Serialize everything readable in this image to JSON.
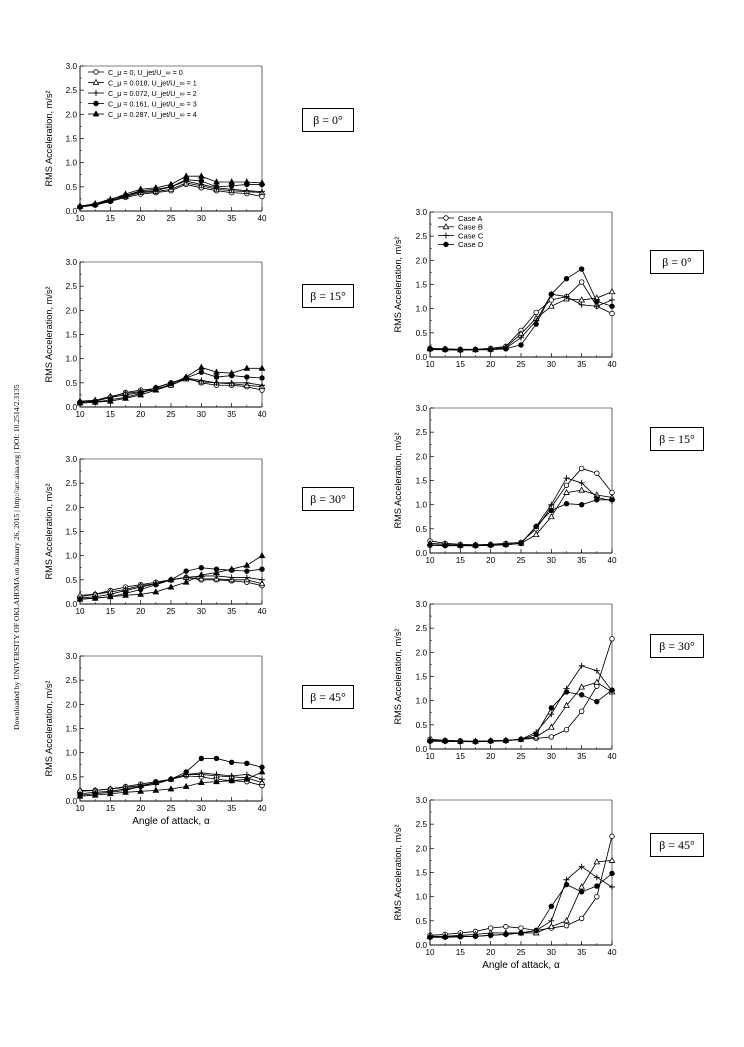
{
  "side_note": "Downloaded by UNIVERSITY OF OKLAHOMA on January 26, 2015 | http://arc.aiaa.org | DOI: 10.2514/2.3135",
  "chart_data": [
    {
      "type": "line",
      "group": "left",
      "panel": 1,
      "beta_label": "β = 0°",
      "ylabel": "RMS Acceleration, m/s²",
      "xlabel": "",
      "xlim": [
        10,
        40
      ],
      "ylim": [
        0,
        3.0
      ],
      "xticks": [
        10,
        15,
        20,
        25,
        30,
        35,
        40
      ],
      "yticks": [
        0.0,
        0.5,
        1.0,
        1.5,
        2.0,
        2.5,
        3.0
      ],
      "x": [
        10,
        12.5,
        15,
        17.5,
        20,
        22.5,
        25,
        27.5,
        30,
        32.5,
        35,
        37.5,
        40
      ],
      "legend": [
        "C_μ = 0, U_jet/U_∞ = 0",
        "C_μ = 0.018, U_jet/U_∞ = 1",
        "C_μ = 0.072, U_jet/U_∞ = 2",
        "C_μ = 0.161, U_jet/U_∞ = 3",
        "C_μ = 0.287, U_jet/U_∞ = 4"
      ],
      "series": [
        {
          "marker": "open-circle",
          "values": [
            0.08,
            0.12,
            0.2,
            0.28,
            0.35,
            0.38,
            0.42,
            0.55,
            0.48,
            0.42,
            0.38,
            0.36,
            0.3
          ]
        },
        {
          "marker": "open-triangle",
          "values": [
            0.1,
            0.14,
            0.22,
            0.3,
            0.38,
            0.4,
            0.45,
            0.58,
            0.52,
            0.45,
            0.42,
            0.4,
            0.38
          ]
        },
        {
          "marker": "plus",
          "values": [
            0.1,
            0.15,
            0.25,
            0.32,
            0.4,
            0.42,
            0.5,
            0.62,
            0.55,
            0.48,
            0.45,
            0.42,
            0.4
          ]
        },
        {
          "marker": "filled-circle",
          "values": [
            0.09,
            0.13,
            0.2,
            0.32,
            0.42,
            0.45,
            0.5,
            0.65,
            0.62,
            0.5,
            0.52,
            0.55,
            0.55
          ]
        },
        {
          "marker": "filled-triangle",
          "values": [
            0.1,
            0.15,
            0.23,
            0.35,
            0.45,
            0.48,
            0.55,
            0.72,
            0.72,
            0.6,
            0.6,
            0.6,
            0.58
          ]
        }
      ]
    },
    {
      "type": "line",
      "group": "left",
      "panel": 2,
      "beta_label": "β = 15°",
      "ylabel": "RMS Acceleration, m/s²",
      "xlabel": "",
      "xlim": [
        10,
        40
      ],
      "ylim": [
        0,
        3.0
      ],
      "xticks": [
        10,
        15,
        20,
        25,
        30,
        35,
        40
      ],
      "yticks": [
        0.0,
        0.5,
        1.0,
        1.5,
        2.0,
        2.5,
        3.0
      ],
      "x": [
        10,
        12.5,
        15,
        17.5,
        20,
        22.5,
        25,
        27.5,
        30,
        32.5,
        35,
        37.5,
        40
      ],
      "series": [
        {
          "marker": "open-circle",
          "values": [
            0.1,
            0.12,
            0.2,
            0.3,
            0.35,
            0.38,
            0.45,
            0.6,
            0.5,
            0.45,
            0.45,
            0.42,
            0.35
          ]
        },
        {
          "marker": "open-triangle",
          "values": [
            0.12,
            0.14,
            0.22,
            0.28,
            0.32,
            0.35,
            0.45,
            0.58,
            0.52,
            0.5,
            0.48,
            0.45,
            0.42
          ]
        },
        {
          "marker": "plus",
          "values": [
            0.1,
            0.12,
            0.2,
            0.25,
            0.3,
            0.4,
            0.5,
            0.6,
            0.55,
            0.5,
            0.5,
            0.5,
            0.45
          ]
        },
        {
          "marker": "filled-circle",
          "values": [
            0.08,
            0.1,
            0.15,
            0.2,
            0.28,
            0.4,
            0.5,
            0.6,
            0.72,
            0.62,
            0.65,
            0.62,
            0.6
          ]
        },
        {
          "marker": "filled-triangle",
          "values": [
            0.08,
            0.1,
            0.12,
            0.18,
            0.25,
            0.35,
            0.48,
            0.62,
            0.82,
            0.72,
            0.7,
            0.8,
            0.8
          ]
        }
      ]
    },
    {
      "type": "line",
      "group": "left",
      "panel": 3,
      "beta_label": "β = 30°",
      "ylabel": "RMS Acceleration, m/s²",
      "xlabel": "",
      "xlim": [
        10,
        40
      ],
      "ylim": [
        0,
        3.0
      ],
      "xticks": [
        10,
        15,
        20,
        25,
        30,
        35,
        40
      ],
      "yticks": [
        0.0,
        0.5,
        1.0,
        1.5,
        2.0,
        2.5,
        3.0
      ],
      "x": [
        10,
        12.5,
        15,
        17.5,
        20,
        22.5,
        25,
        27.5,
        30,
        32.5,
        35,
        37.5,
        40
      ],
      "series": [
        {
          "marker": "open-circle",
          "values": [
            0.15,
            0.2,
            0.28,
            0.35,
            0.4,
            0.45,
            0.5,
            0.55,
            0.5,
            0.5,
            0.48,
            0.45,
            0.38
          ]
        },
        {
          "marker": "open-triangle",
          "values": [
            0.18,
            0.2,
            0.25,
            0.3,
            0.38,
            0.42,
            0.5,
            0.55,
            0.52,
            0.52,
            0.5,
            0.5,
            0.42
          ]
        },
        {
          "marker": "plus",
          "values": [
            0.12,
            0.15,
            0.2,
            0.28,
            0.35,
            0.42,
            0.5,
            0.55,
            0.58,
            0.58,
            0.55,
            0.55,
            0.5
          ]
        },
        {
          "marker": "filled-circle",
          "values": [
            0.1,
            0.12,
            0.15,
            0.22,
            0.3,
            0.4,
            0.5,
            0.68,
            0.75,
            0.72,
            0.7,
            0.68,
            0.72
          ]
        },
        {
          "marker": "filled-triangle",
          "values": [
            0.1,
            0.12,
            0.15,
            0.18,
            0.2,
            0.25,
            0.35,
            0.45,
            0.6,
            0.65,
            0.72,
            0.8,
            1.0
          ]
        }
      ]
    },
    {
      "type": "line",
      "group": "left",
      "panel": 4,
      "beta_label": "β = 45°",
      "ylabel": "RMS Acceleration, m/s²",
      "xlabel": "Angle of attack, α",
      "xlim": [
        10,
        40
      ],
      "ylim": [
        0,
        3.0
      ],
      "xticks": [
        10,
        15,
        20,
        25,
        30,
        35,
        40
      ],
      "yticks": [
        0.0,
        0.5,
        1.0,
        1.5,
        2.0,
        2.5,
        3.0
      ],
      "x": [
        10,
        12.5,
        15,
        17.5,
        20,
        22.5,
        25,
        27.5,
        30,
        32.5,
        35,
        37.5,
        40
      ],
      "series": [
        {
          "marker": "open-circle",
          "values": [
            0.2,
            0.22,
            0.25,
            0.3,
            0.35,
            0.4,
            0.45,
            0.52,
            0.5,
            0.45,
            0.42,
            0.4,
            0.32
          ]
        },
        {
          "marker": "open-triangle",
          "values": [
            0.22,
            0.22,
            0.25,
            0.28,
            0.32,
            0.38,
            0.45,
            0.55,
            0.55,
            0.52,
            0.5,
            0.48,
            0.38
          ]
        },
        {
          "marker": "plus",
          "values": [
            0.15,
            0.18,
            0.2,
            0.25,
            0.3,
            0.35,
            0.45,
            0.55,
            0.58,
            0.55,
            0.52,
            0.55,
            0.45
          ]
        },
        {
          "marker": "filled-circle",
          "values": [
            0.12,
            0.15,
            0.18,
            0.22,
            0.3,
            0.38,
            0.45,
            0.6,
            0.88,
            0.88,
            0.8,
            0.78,
            0.7
          ]
        },
        {
          "marker": "filled-triangle",
          "values": [
            0.1,
            0.12,
            0.15,
            0.18,
            0.2,
            0.22,
            0.25,
            0.3,
            0.38,
            0.4,
            0.42,
            0.45,
            0.6
          ]
        }
      ]
    },
    {
      "type": "line",
      "group": "right",
      "panel": 1,
      "beta_label": "β = 0°",
      "ylabel": "RMS Acceleration, m/s²",
      "xlabel": "",
      "xlim": [
        10,
        40
      ],
      "ylim": [
        0,
        3.0
      ],
      "xticks": [
        10,
        15,
        20,
        25,
        30,
        35,
        40
      ],
      "yticks": [
        0.0,
        0.5,
        1.0,
        1.5,
        2.0,
        2.5,
        3.0
      ],
      "x": [
        10,
        12.5,
        15,
        17.5,
        20,
        22.5,
        25,
        27.5,
        30,
        32.5,
        35,
        37.5,
        40
      ],
      "legend": [
        "Case A",
        "Case B",
        "Case C",
        "Case D"
      ],
      "series": [
        {
          "marker": "open-circle",
          "values": [
            0.18,
            0.17,
            0.16,
            0.16,
            0.18,
            0.22,
            0.55,
            0.92,
            1.18,
            1.25,
            1.55,
            1.05,
            0.9
          ]
        },
        {
          "marker": "open-triangle",
          "values": [
            0.17,
            0.16,
            0.15,
            0.15,
            0.16,
            0.2,
            0.48,
            0.8,
            1.05,
            1.2,
            1.18,
            1.22,
            1.35
          ]
        },
        {
          "marker": "plus",
          "values": [
            0.15,
            0.15,
            0.14,
            0.15,
            0.15,
            0.18,
            0.4,
            0.75,
            1.3,
            1.25,
            1.08,
            1.05,
            1.18
          ]
        },
        {
          "marker": "filled-circle",
          "values": [
            0.16,
            0.15,
            0.14,
            0.15,
            0.15,
            0.17,
            0.25,
            0.68,
            1.3,
            1.62,
            1.82,
            1.15,
            1.05
          ]
        }
      ]
    },
    {
      "type": "line",
      "group": "right",
      "panel": 2,
      "beta_label": "β = 15°",
      "ylabel": "RMS Acceleration, m/s²",
      "xlabel": "",
      "xlim": [
        10,
        40
      ],
      "ylim": [
        0,
        3.0
      ],
      "xticks": [
        10,
        15,
        20,
        25,
        30,
        35,
        40
      ],
      "yticks": [
        0.0,
        0.5,
        1.0,
        1.5,
        2.0,
        2.5,
        3.0
      ],
      "x": [
        10,
        12.5,
        15,
        17.5,
        20,
        22.5,
        25,
        27.5,
        30,
        32.5,
        35,
        37.5,
        40
      ],
      "series": [
        {
          "marker": "open-circle",
          "values": [
            0.25,
            0.2,
            0.18,
            0.17,
            0.18,
            0.2,
            0.22,
            0.5,
            0.95,
            1.4,
            1.75,
            1.65,
            1.25
          ]
        },
        {
          "marker": "open-triangle",
          "values": [
            0.2,
            0.18,
            0.16,
            0.16,
            0.17,
            0.18,
            0.2,
            0.38,
            0.75,
            1.25,
            1.3,
            1.2,
            1.15
          ]
        },
        {
          "marker": "plus",
          "values": [
            0.17,
            0.16,
            0.15,
            0.15,
            0.16,
            0.17,
            0.2,
            0.55,
            1.0,
            1.55,
            1.45,
            1.15,
            1.08
          ]
        },
        {
          "marker": "filled-circle",
          "values": [
            0.16,
            0.15,
            0.15,
            0.15,
            0.16,
            0.17,
            0.2,
            0.55,
            0.88,
            1.02,
            1.0,
            1.1,
            1.1
          ]
        }
      ]
    },
    {
      "type": "line",
      "group": "right",
      "panel": 3,
      "beta_label": "β = 30°",
      "ylabel": "RMS Acceleration, m/s²",
      "xlabel": "",
      "xlim": [
        10,
        40
      ],
      "ylim": [
        0,
        3.0
      ],
      "xticks": [
        10,
        15,
        20,
        25,
        30,
        35,
        40
      ],
      "yticks": [
        0.0,
        0.5,
        1.0,
        1.5,
        2.0,
        2.5,
        3.0
      ],
      "x": [
        10,
        12.5,
        15,
        17.5,
        20,
        22.5,
        25,
        27.5,
        30,
        32.5,
        35,
        37.5,
        40
      ],
      "series": [
        {
          "marker": "open-circle",
          "values": [
            0.2,
            0.18,
            0.17,
            0.16,
            0.17,
            0.18,
            0.2,
            0.22,
            0.25,
            0.4,
            0.78,
            1.3,
            2.28
          ]
        },
        {
          "marker": "open-triangle",
          "values": [
            0.18,
            0.17,
            0.16,
            0.16,
            0.17,
            0.18,
            0.2,
            0.25,
            0.45,
            0.9,
            1.28,
            1.38,
            1.18
          ]
        },
        {
          "marker": "plus",
          "values": [
            0.17,
            0.16,
            0.16,
            0.15,
            0.16,
            0.17,
            0.2,
            0.35,
            0.72,
            1.25,
            1.72,
            1.62,
            1.2
          ]
        },
        {
          "marker": "filled-circle",
          "values": [
            0.16,
            0.16,
            0.15,
            0.15,
            0.16,
            0.17,
            0.2,
            0.3,
            0.85,
            1.18,
            1.12,
            0.98,
            1.22
          ]
        }
      ]
    },
    {
      "type": "line",
      "group": "right",
      "panel": 4,
      "beta_label": "β = 45°",
      "ylabel": "RMS Acceleration, m/s²",
      "xlabel": "Angle of attack, α",
      "xlim": [
        10,
        40
      ],
      "ylim": [
        0,
        3.0
      ],
      "xticks": [
        10,
        15,
        20,
        25,
        30,
        35,
        40
      ],
      "yticks": [
        0.0,
        0.5,
        1.0,
        1.5,
        2.0,
        2.5,
        3.0
      ],
      "x": [
        10,
        12.5,
        15,
        17.5,
        20,
        22.5,
        25,
        27.5,
        30,
        32.5,
        35,
        37.5,
        40
      ],
      "series": [
        {
          "marker": "open-circle",
          "values": [
            0.2,
            0.22,
            0.25,
            0.28,
            0.35,
            0.38,
            0.35,
            0.3,
            0.35,
            0.4,
            0.55,
            1.0,
            2.25
          ]
        },
        {
          "marker": "open-triangle",
          "values": [
            0.18,
            0.18,
            0.2,
            0.22,
            0.25,
            0.25,
            0.25,
            0.25,
            0.38,
            0.5,
            1.2,
            1.72,
            1.75
          ]
        },
        {
          "marker": "plus",
          "values": [
            0.17,
            0.17,
            0.18,
            0.18,
            0.2,
            0.22,
            0.25,
            0.3,
            0.5,
            1.35,
            1.62,
            1.4,
            1.2
          ]
        },
        {
          "marker": "filled-circle",
          "values": [
            0.16,
            0.16,
            0.17,
            0.18,
            0.2,
            0.22,
            0.25,
            0.3,
            0.8,
            1.25,
            1.1,
            1.22,
            1.48
          ]
        }
      ]
    }
  ]
}
